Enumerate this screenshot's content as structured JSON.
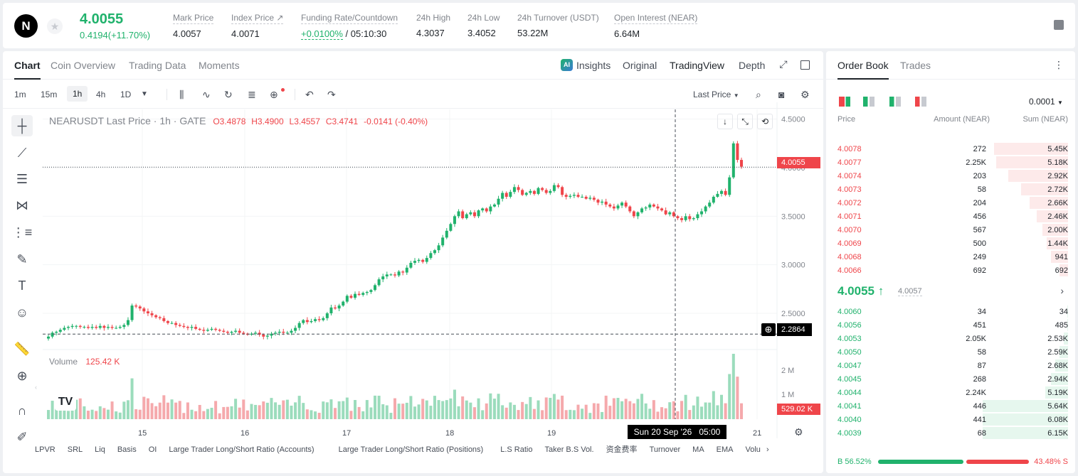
{
  "header": {
    "logo_text": "N",
    "last_price": "4.0055",
    "change": "0.4194(+11.70%)",
    "stats": [
      {
        "label": "Mark Price",
        "value": "4.0057"
      },
      {
        "label": "Index Price ↗",
        "value": "4.0071"
      },
      {
        "label": "Funding Rate/Countdown",
        "rate": "+0.0100%",
        "countdown": "/ 05:10:30"
      },
      {
        "label": "24h High",
        "value": "4.3037"
      },
      {
        "label": "24h Low",
        "value": "3.4052"
      },
      {
        "label": "24h Turnover (USDT)",
        "value": "53.22M"
      },
      {
        "label": "Open Interest (NEAR)",
        "value": "6.64M"
      }
    ]
  },
  "chart_tabs": [
    "Chart",
    "Coin Overview",
    "Trading Data",
    "Moments"
  ],
  "view_tabs": {
    "insights": "Insights",
    "original": "Original",
    "tradingview": "TradingView",
    "depth": "Depth",
    "ai_badge": "AI"
  },
  "timeframes": [
    "1m",
    "15m",
    "1h",
    "4h",
    "1D"
  ],
  "last_price_select": "Last Price",
  "legend": {
    "symbol": "NEARUSDT Last Price · 1h · GATE",
    "o": "O3.4878",
    "h": "H3.4900",
    "l": "L3.4557",
    "c": "C3.4741",
    "chg": "-0.0141 (-0.40%)"
  },
  "volume_legend": {
    "label": "Volume",
    "value": "125.42 K"
  },
  "price_labels": {
    "current": "4.0055",
    "cursor": "2.2864",
    "volume": "529.02 K",
    "crosshair_time": "Sun 20 Sep '26   05:00"
  },
  "indicators": [
    "LPVR",
    "SRL",
    "Liq",
    "Basis",
    "OI",
    "Large Trader Long/Short Ratio (Accounts)",
    "Large Trader Long/Short Ratio (Positions)",
    "L.S Ratio",
    "Taker B.S Vol.",
    "资金费率",
    "Turnover",
    "MA",
    "EMA",
    "Volu"
  ],
  "chart_data": {
    "type": "candlestick",
    "title": "NEARUSDT Last Price · 1h · GATE",
    "x_ticks": [
      "15",
      "16",
      "17",
      "18",
      "19",
      "21"
    ],
    "y_ticks": [
      "4.5000",
      "4.0000",
      "3.5000",
      "3.0000",
      "2.5000"
    ],
    "volume_ticks": [
      "2 M",
      "1 M"
    ],
    "ylim": [
      2.2,
      4.6
    ],
    "close_series": [
      2.26,
      2.3,
      2.31,
      2.33,
      2.35,
      2.36,
      2.37,
      2.37,
      2.36,
      2.36,
      2.35,
      2.36,
      2.35,
      2.37,
      2.35,
      2.36,
      2.35,
      2.35,
      2.36,
      2.38,
      2.43,
      2.58,
      2.57,
      2.55,
      2.52,
      2.5,
      2.48,
      2.46,
      2.45,
      2.42,
      2.4,
      2.4,
      2.38,
      2.37,
      2.36,
      2.35,
      2.36,
      2.34,
      2.33,
      2.32,
      2.33,
      2.34,
      2.33,
      2.32,
      2.31,
      2.3,
      2.31,
      2.32,
      2.3,
      2.29,
      2.28,
      2.29,
      2.3,
      2.28,
      2.26,
      2.27,
      2.29,
      2.3,
      2.31,
      2.3,
      2.3,
      2.32,
      2.35,
      2.4,
      2.43,
      2.41,
      2.42,
      2.44,
      2.43,
      2.45,
      2.5,
      2.56,
      2.55,
      2.58,
      2.62,
      2.68,
      2.66,
      2.7,
      2.69,
      2.71,
      2.72,
      2.74,
      2.79,
      2.85,
      2.88,
      2.9,
      2.9,
      2.89,
      2.93,
      2.92,
      2.97,
      3.02,
      3.04,
      3.05,
      3.03,
      3.07,
      3.12,
      3.15,
      3.2,
      3.28,
      3.35,
      3.42,
      3.5,
      3.55,
      3.48,
      3.52,
      3.54,
      3.5,
      3.56,
      3.58,
      3.55,
      3.6,
      3.62,
      3.68,
      3.74,
      3.7,
      3.75,
      3.8,
      3.77,
      3.72,
      3.74,
      3.76,
      3.73,
      3.79,
      3.77,
      3.74,
      3.76,
      3.82,
      3.8,
      3.72,
      3.7,
      3.71,
      3.72,
      3.7,
      3.7,
      3.68,
      3.69,
      3.67,
      3.64,
      3.65,
      3.62,
      3.6,
      3.58,
      3.61,
      3.64,
      3.6,
      3.55,
      3.5,
      3.54,
      3.58,
      3.59,
      3.62,
      3.6,
      3.58,
      3.56,
      3.52,
      3.54,
      3.5,
      3.48,
      3.46,
      3.5,
      3.47,
      3.48,
      3.52,
      3.55,
      3.6,
      3.64,
      3.7,
      3.73,
      3.76,
      3.72,
      3.9,
      4.25,
      4.08,
      4.01
    ]
  },
  "order_book": {
    "tabs": [
      "Order Book",
      "Trades"
    ],
    "precision": "0.0001",
    "headers": {
      "price": "Price",
      "amount": "Amount (NEAR)",
      "sum": "Sum (NEAR)"
    },
    "asks": [
      {
        "price": "4.0078",
        "amount": "272",
        "sum": "5.45K",
        "depth": 0.87
      },
      {
        "price": "4.0077",
        "amount": "2.25K",
        "sum": "5.18K",
        "depth": 0.84
      },
      {
        "price": "4.0074",
        "amount": "203",
        "sum": "2.92K",
        "depth": 0.7
      },
      {
        "price": "4.0073",
        "amount": "58",
        "sum": "2.72K",
        "depth": 0.55
      },
      {
        "price": "4.0072",
        "amount": "204",
        "sum": "2.66K",
        "depth": 0.45
      },
      {
        "price": "4.0071",
        "amount": "456",
        "sum": "2.46K",
        "depth": 0.37
      },
      {
        "price": "4.0070",
        "amount": "567",
        "sum": "2.00K",
        "depth": 0.3
      },
      {
        "price": "4.0069",
        "amount": "500",
        "sum": "1.44K",
        "depth": 0.25
      },
      {
        "price": "4.0068",
        "amount": "249",
        "sum": "941",
        "depth": 0.2
      },
      {
        "price": "4.0066",
        "amount": "692",
        "sum": "692",
        "depth": 0.1
      }
    ],
    "mid_price": "4.0055 ↑",
    "mark_price": "4.0057",
    "bids": [
      {
        "price": "4.0060",
        "amount": "34",
        "sum": "34",
        "depth": 0.01
      },
      {
        "price": "4.0056",
        "amount": "451",
        "sum": "485",
        "depth": 0.01
      },
      {
        "price": "4.0053",
        "amount": "2.05K",
        "sum": "2.53K",
        "depth": 0.05
      },
      {
        "price": "4.0050",
        "amount": "58",
        "sum": "2.59K",
        "depth": 0.1
      },
      {
        "price": "4.0047",
        "amount": "87",
        "sum": "2.68K",
        "depth": 0.15
      },
      {
        "price": "4.0045",
        "amount": "268",
        "sum": "2.94K",
        "depth": 0.2
      },
      {
        "price": "4.0044",
        "amount": "2.24K",
        "sum": "5.19K",
        "depth": 0.27
      },
      {
        "price": "4.0041",
        "amount": "446",
        "sum": "5.64K",
        "depth": 1.0
      },
      {
        "price": "4.0040",
        "amount": "441",
        "sum": "6.08K",
        "depth": 1.0
      },
      {
        "price": "4.0039",
        "amount": "68",
        "sum": "6.15K",
        "depth": 1.0
      }
    ],
    "buy_ratio": "B 56.52%",
    "sell_ratio": "43.48% S",
    "buy_fraction": 0.5652
  }
}
